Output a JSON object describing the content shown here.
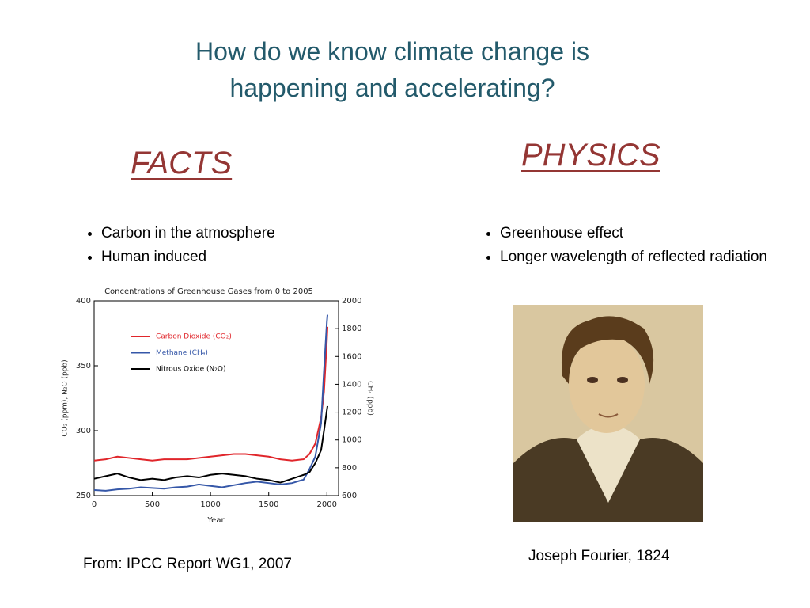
{
  "title": [
    "How do we know climate change is",
    "happening and accelerating?"
  ],
  "left": {
    "heading": "FACTS",
    "bullets": [
      "Carbon in the atmosphere",
      "Human induced"
    ],
    "caption": "From: IPCC Report WG1, 2007"
  },
  "right": {
    "heading": "PHYSICS",
    "bullets": [
      "Greenhouse effect",
      "Longer wavelength of reflected radiation"
    ],
    "caption": "Joseph Fourier, 1824"
  },
  "chart_data": {
    "type": "line",
    "title": "Concentrations of Greenhouse Gases from 0 to 2005",
    "xlabel": "Year",
    "ylabel": "CO₂ (ppm), N₂O (ppb)",
    "y2label": "CH₄ (ppb)",
    "x": [
      0,
      100,
      200,
      300,
      400,
      500,
      600,
      700,
      800,
      900,
      1000,
      1100,
      1200,
      1300,
      1400,
      1500,
      1600,
      1700,
      1800,
      1850,
      1900,
      1950,
      1975,
      2000,
      2005
    ],
    "xlim": [
      0,
      2100
    ],
    "xticks": [
      0,
      500,
      1000,
      1500,
      2000
    ],
    "ylim": [
      250,
      400
    ],
    "yticks": [
      250,
      300,
      350,
      400
    ],
    "y2lim": [
      600,
      2000
    ],
    "y2ticks": [
      600,
      800,
      1000,
      1200,
      1400,
      1600,
      1800,
      2000
    ],
    "legend": "upper left",
    "series": [
      {
        "name": "Carbon Dioxide (CO₂)",
        "color": "#e0262b",
        "values": [
          277,
          278,
          280,
          279,
          278,
          277,
          278,
          278,
          278,
          279,
          280,
          281,
          282,
          282,
          281,
          280,
          278,
          277,
          278,
          282,
          290,
          310,
          330,
          370,
          380
        ]
      },
      {
        "name": "Methane (CH₄)",
        "color": "#3557a8",
        "axis": "y2",
        "values": [
          640,
          635,
          645,
          650,
          660,
          655,
          650,
          660,
          665,
          680,
          670,
          660,
          675,
          690,
          700,
          690,
          680,
          690,
          715,
          790,
          880,
          1120,
          1500,
          1850,
          1900
        ]
      },
      {
        "name": "Nitrous Oxide (N₂O)",
        "color": "#000000",
        "values": [
          263,
          265,
          267,
          264,
          262,
          263,
          262,
          264,
          265,
          264,
          266,
          267,
          266,
          265,
          263,
          262,
          260,
          263,
          266,
          268,
          275,
          285,
          300,
          316,
          319
        ]
      }
    ]
  }
}
